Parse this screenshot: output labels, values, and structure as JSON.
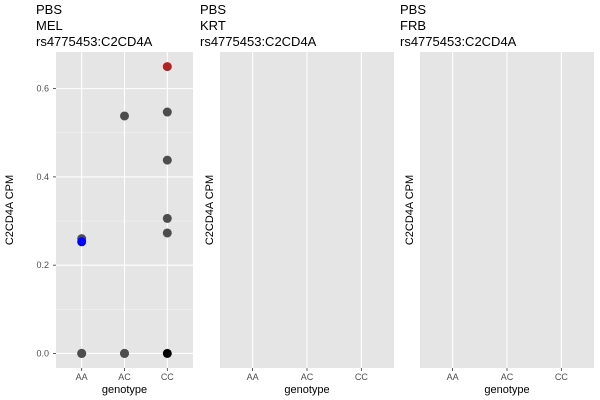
{
  "chart_data": [
    {
      "type": "scatter",
      "title_lines": [
        "PBS",
        "MEL",
        "rs4775453:C2CD4A"
      ],
      "xlabel": "genotype",
      "ylabel": "C2CD4A CPM",
      "categories": [
        "AA",
        "AC",
        "CC"
      ],
      "ylim": [
        -0.033,
        0.683
      ],
      "y_ticks": [
        0.0,
        0.2,
        0.4,
        0.6
      ],
      "y_tick_labels": [
        "0.0",
        "0.2",
        "0.4",
        "0.6"
      ],
      "grid": true,
      "points": [
        {
          "x": "AA",
          "y": 0.0,
          "color": "#4d4d4d"
        },
        {
          "x": "AA",
          "y": 0.0,
          "color": "#4d4d4d"
        },
        {
          "x": "AA",
          "y": 0.26,
          "color": "#4d4d4d"
        },
        {
          "x": "AA",
          "y": 0.253,
          "color": "#0000ff"
        },
        {
          "x": "AC",
          "y": 0.0,
          "color": "#4d4d4d"
        },
        {
          "x": "AC",
          "y": 0.0,
          "color": "#4d4d4d"
        },
        {
          "x": "AC",
          "y": 0.538,
          "color": "#4d4d4d"
        },
        {
          "x": "CC",
          "y": 0.0,
          "color": "#000000"
        },
        {
          "x": "CC",
          "y": 0.273,
          "color": "#4d4d4d"
        },
        {
          "x": "CC",
          "y": 0.306,
          "color": "#4d4d4d"
        },
        {
          "x": "CC",
          "y": 0.438,
          "color": "#4d4d4d"
        },
        {
          "x": "CC",
          "y": 0.547,
          "color": "#4d4d4d"
        },
        {
          "x": "CC",
          "y": 0.65,
          "color": "#b22222"
        }
      ]
    },
    {
      "type": "scatter",
      "title_lines": [
        "PBS",
        "KRT",
        "rs4775453:C2CD4A"
      ],
      "xlabel": "genotype",
      "ylabel": "C2CD4A CPM",
      "categories": [
        "AA",
        "AC",
        "CC"
      ],
      "y_ticks": [],
      "y_tick_labels": [],
      "grid": true,
      "points": []
    },
    {
      "type": "scatter",
      "title_lines": [
        "PBS",
        "FRB",
        "rs4775453:C2CD4A"
      ],
      "xlabel": "genotype",
      "ylabel": "C2CD4A CPM",
      "categories": [
        "AA",
        "AC",
        "CC"
      ],
      "y_ticks": [],
      "y_tick_labels": [],
      "grid": true,
      "points": []
    }
  ],
  "colors": {
    "panel_background": "#e5e5e5",
    "grid_major": "#ffffff",
    "grid_minor": "#f2f2f2",
    "point_default": "#4d4d4d",
    "point_highlight_blue": "#0000ff",
    "point_highlight_red": "#b22222",
    "point_highlight_black": "#000000"
  }
}
